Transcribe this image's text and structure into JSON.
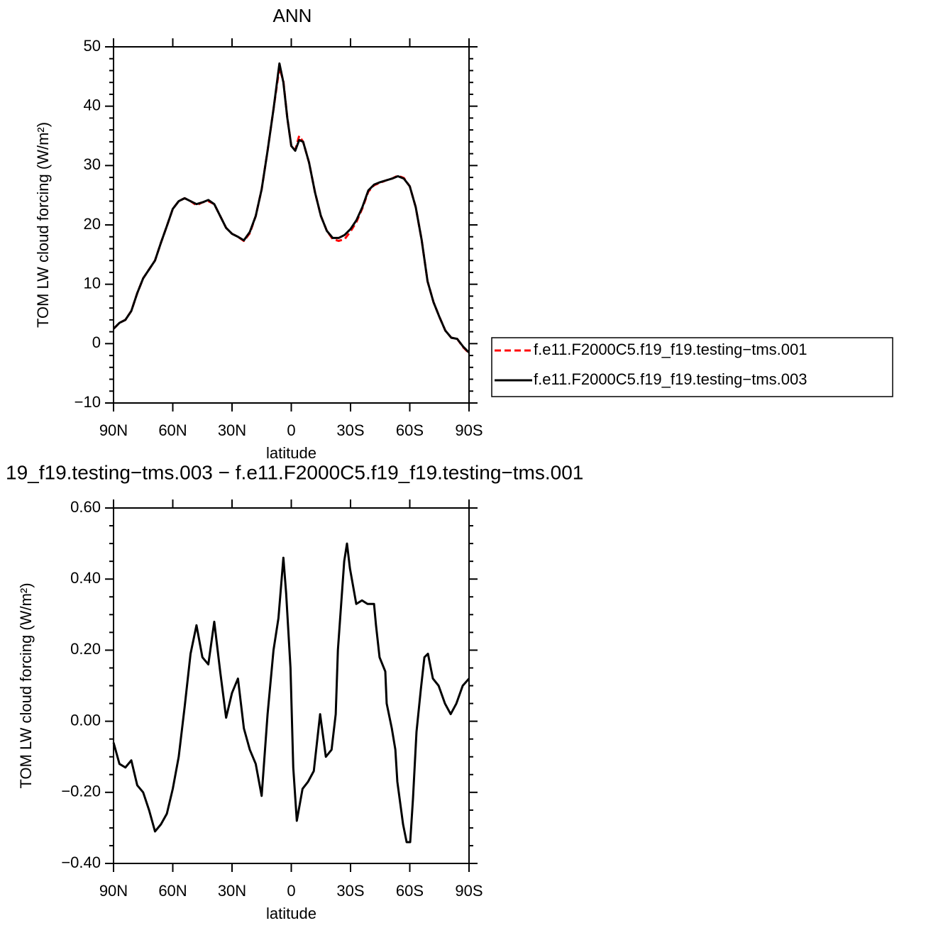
{
  "chart_data": [
    {
      "type": "line",
      "title": "ANN",
      "xlabel": "latitude",
      "ylabel": "TOM LW cloud forcing (W/m²)",
      "x": [
        90,
        87,
        84,
        81,
        78,
        75,
        72,
        69,
        66,
        63,
        60,
        57,
        54,
        51,
        48,
        45,
        42,
        39,
        36,
        33,
        30,
        27,
        24,
        21,
        18,
        15,
        12,
        9,
        6,
        4,
        2,
        0,
        -2,
        -4,
        -6,
        -9,
        -12,
        -15,
        -18,
        -21,
        -24,
        -27,
        -30,
        -33,
        -36,
        -39,
        -42,
        -45,
        -48,
        -51,
        -54,
        -57,
        -60,
        -63,
        -66,
        -69,
        -72,
        -75,
        -78,
        -81,
        -84,
        -87,
        -90
      ],
      "series": [
        {
          "name": "f.e11.F2000C5.f19_f19.testing−tms.001",
          "color": "#ff0000",
          "dash": true,
          "values": [
            2.5,
            3.5,
            4.0,
            5.5,
            8.5,
            11,
            12.5,
            14,
            17,
            19.8,
            22.7,
            24,
            24.5,
            24,
            23.3,
            23.8,
            24.0,
            23.5,
            21.5,
            19.5,
            18.5,
            18.0,
            17.3,
            18.6,
            21.5,
            26,
            32.5,
            39.5,
            46.5,
            44.2,
            38,
            33.3,
            32.6,
            35.0,
            34.0,
            30.5,
            25.5,
            21.5,
            19,
            17.6,
            17.3,
            17.6,
            18.9,
            20.5,
            22.8,
            25.6,
            26.7,
            27.1,
            27.5,
            27.8,
            28.3,
            27.9,
            26.5,
            23,
            17.5,
            10.5,
            7,
            4.5,
            2.2,
            1.0,
            0.8,
            -0.6,
            -1.6
          ]
        },
        {
          "name": "f.e11.F2000C5.f19_f19.testing−tms.003",
          "color": "#000000",
          "dash": false,
          "values": [
            2.5,
            3.5,
            4.0,
            5.5,
            8.5,
            11,
            12.5,
            14,
            17,
            19.8,
            22.7,
            24,
            24.5,
            24,
            23.5,
            23.8,
            24.2,
            23.5,
            21.5,
            19.5,
            18.5,
            18.0,
            17.4,
            18.8,
            21.5,
            26,
            32.5,
            39.5,
            47.2,
            44,
            38,
            33.3,
            32.5,
            34.3,
            34.0,
            30.5,
            25.5,
            21.5,
            19,
            17.8,
            17.8,
            18.3,
            19.3,
            20.8,
            23,
            25.8,
            26.8,
            27.2,
            27.5,
            27.8,
            28.2,
            27.8,
            26.5,
            23,
            17.5,
            10.5,
            7,
            4.5,
            2.2,
            1.0,
            0.8,
            -0.5,
            -1.5
          ]
        }
      ],
      "xlim": [
        90,
        -90
      ],
      "xticks": [
        {
          "value": 90,
          "label": "90N"
        },
        {
          "value": 60,
          "label": "60N"
        },
        {
          "value": 30,
          "label": "30N"
        },
        0,
        {
          "value": -30,
          "label": "30S"
        },
        {
          "value": -60,
          "label": "60S"
        },
        {
          "value": -90,
          "label": "90S"
        }
      ],
      "ylim": [
        -10,
        50
      ],
      "yticks": [
        {
          "value": -10,
          "label": "−10"
        },
        0,
        10,
        20,
        30,
        40,
        50
      ],
      "yminor_ticks": [
        -8,
        -6,
        -4,
        -2,
        2,
        4,
        6,
        8,
        12,
        14,
        16,
        18,
        22,
        24,
        26,
        28,
        32,
        34,
        36,
        38,
        42,
        44,
        46,
        48
      ],
      "legend": "right"
    },
    {
      "type": "line",
      "title": "19_f19.testing−tms.003 − f.e11.F2000C5.f19_f19.testing−tms.001",
      "xlabel": "latitude",
      "ylabel": "TOM LW cloud forcing (W/m²)",
      "x": [
        90,
        87,
        84,
        81,
        78,
        75,
        72,
        69,
        66,
        63,
        60,
        57,
        54,
        51,
        48,
        45,
        42,
        39,
        36,
        33,
        30,
        27,
        24,
        21,
        18,
        15,
        12,
        9,
        6.5,
        4,
        2.6,
        0.4,
        -1,
        -2.8,
        -5.7,
        -8.5,
        -11.4,
        -14.6,
        -17.5,
        -20.4,
        -22.5,
        -23.6,
        -26.8,
        -28.2,
        -29.7,
        -32.9,
        -35.8,
        -38.6,
        -41.9,
        -42.9,
        -44.7,
        -47.6,
        -48.3,
        -50.9,
        -52.7,
        -53.7,
        -56.6,
        -58.4,
        -60.2,
        -61.6,
        -63.4,
        -65.6,
        -67.4,
        -69.2,
        -71.7,
        -74.6,
        -77.8,
        -80.7,
        -83.6,
        -86.8,
        -90
      ],
      "series": [
        {
          "name": null,
          "color": "#000000",
          "dash": false,
          "values": [
            -0.06,
            -0.12,
            -0.13,
            -0.11,
            -0.18,
            -0.2,
            -0.25,
            -0.31,
            -0.29,
            -0.26,
            -0.19,
            -0.1,
            0.04,
            0.19,
            0.27,
            0.18,
            0.16,
            0.28,
            0.14,
            0.01,
            0.08,
            0.12,
            -0.02,
            -0.08,
            -0.12,
            -0.21,
            0.02,
            0.2,
            0.29,
            0.46,
            0.36,
            0.15,
            -0.13,
            -0.28,
            -0.19,
            -0.17,
            -0.14,
            0.02,
            -0.1,
            -0.08,
            0.02,
            0.2,
            0.45,
            0.5,
            0.43,
            0.33,
            0.34,
            0.33,
            0.33,
            0.27,
            0.18,
            0.14,
            0.05,
            -0.02,
            -0.08,
            -0.17,
            -0.29,
            -0.34,
            -0.34,
            -0.22,
            -0.03,
            0.09,
            0.18,
            0.19,
            0.12,
            0.1,
            0.05,
            0.02,
            0.05,
            0.1,
            0.12
          ]
        }
      ],
      "xlim": [
        90,
        -90
      ],
      "xticks": [
        {
          "value": 90,
          "label": "90N"
        },
        {
          "value": 60,
          "label": "60N"
        },
        {
          "value": 30,
          "label": "30N"
        },
        0,
        {
          "value": -30,
          "label": "30S"
        },
        {
          "value": -60,
          "label": "60S"
        },
        {
          "value": -90,
          "label": "90S"
        }
      ],
      "ylim": [
        -0.4,
        0.6
      ],
      "yticks": [
        {
          "value": -0.4,
          "label": "−0.40"
        },
        {
          "value": -0.2,
          "label": "−0.20"
        },
        {
          "value": 0,
          "label": "0.00"
        },
        {
          "value": 0.2,
          "label": "0.20"
        },
        {
          "value": 0.4,
          "label": "0.40"
        },
        {
          "value": 0.6,
          "label": "0.60"
        }
      ],
      "yminor_ticks": [
        -0.35,
        -0.3,
        -0.25,
        -0.15,
        -0.1,
        -0.05,
        0.05,
        0.1,
        0.15,
        0.25,
        0.3,
        0.35,
        0.45,
        0.5,
        0.55
      ]
    }
  ]
}
